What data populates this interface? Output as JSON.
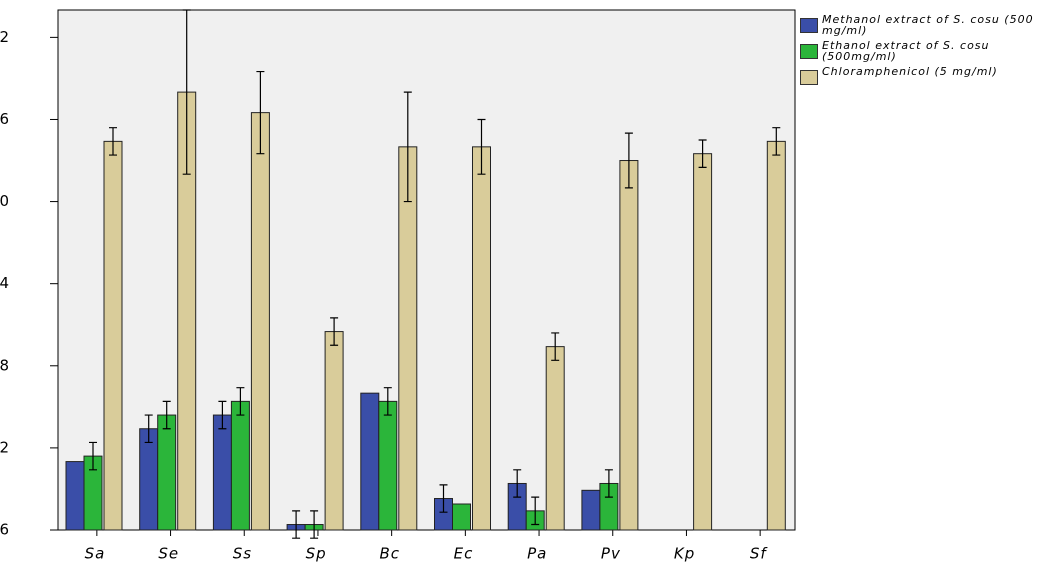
{
  "chart_data": {
    "type": "bar",
    "categories": [
      "Sa",
      "Se",
      "Ss",
      "Sp",
      "Bc",
      "Ec",
      "Pa",
      "Pv",
      "Kp",
      "Sf"
    ],
    "series": [
      {
        "name": "Methanol extract of S. cosu (500 mg/ml)",
        "color": "#3a4ea8",
        "values": [
          11.0,
          13.4,
          14.4,
          6.4,
          16.0,
          8.3,
          9.4,
          8.9,
          null,
          null
        ],
        "errors": [
          null,
          1.0,
          1.0,
          1.0,
          null,
          1.0,
          1.0,
          null,
          null,
          null
        ]
      },
      {
        "name": "Ethanol extract of S. cosu (500mg/ml)",
        "color": "#2bb53a",
        "values": [
          11.4,
          14.4,
          15.4,
          6.4,
          15.4,
          7.9,
          7.4,
          9.4,
          null,
          null
        ],
        "errors": [
          1.0,
          1.0,
          1.0,
          1.0,
          1.0,
          null,
          1.0,
          1.0,
          null,
          null
        ]
      },
      {
        "name": "Chloramphenicol (5 mg/ml)",
        "color": "#d9cc9a",
        "values": [
          34.4,
          38.0,
          36.5,
          20.5,
          34.0,
          34.0,
          19.4,
          33.0,
          33.5,
          34.4
        ],
        "errors": [
          1.0,
          6.0,
          3.0,
          1.0,
          4.0,
          2.0,
          1.0,
          2.0,
          1.0,
          1.0
        ]
      }
    ],
    "ylim": [
      6,
      44
    ],
    "yticks": [
      6,
      {
        "value": 12,
        "label": "2"
      },
      {
        "value": 18,
        "label": "8"
      },
      {
        "value": 24,
        "label": "4"
      },
      {
        "value": 30,
        "label": "0"
      },
      {
        "value": 36,
        "label": "6"
      },
      {
        "value": 42,
        "label": "2"
      }
    ]
  }
}
